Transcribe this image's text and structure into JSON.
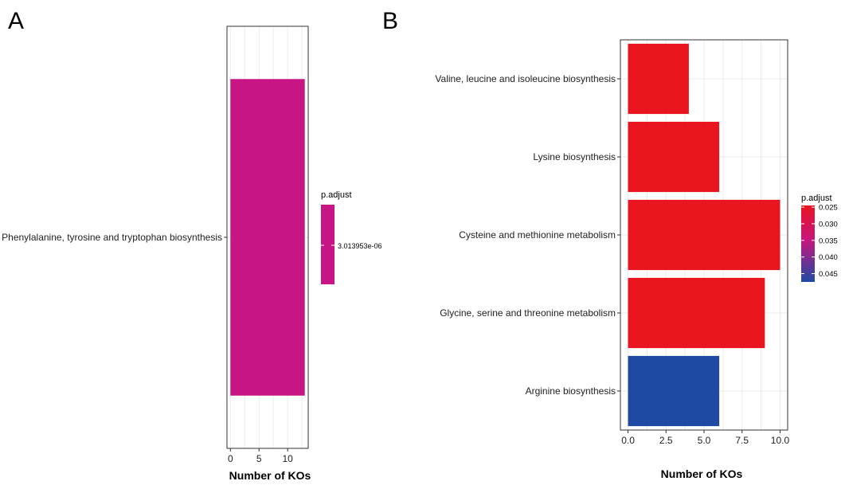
{
  "chart_data": [
    {
      "type": "bar",
      "panel": "A",
      "orientation": "horizontal",
      "categories": [
        "Phenylalanine, tyrosine and tryptophan biosynthesis"
      ],
      "values": [
        13
      ],
      "padjust": [
        3.013953e-06
      ],
      "bar_colors": [
        "#c71585"
      ],
      "xlabel": "Number of KOs",
      "xticks": [
        "0",
        "5",
        "10"
      ],
      "xlim": [
        -0.6,
        13.6
      ],
      "grid": true,
      "legend": {
        "title": "p.adjust",
        "type": "single-color",
        "color": "#c71585",
        "labels": [
          "3.013953e-06"
        ],
        "position": "right"
      }
    },
    {
      "type": "bar",
      "panel": "B",
      "orientation": "horizontal",
      "categories": [
        "Valine, leucine and isoleucine biosynthesis",
        "Lysine biosynthesis",
        "Cysteine and methionine metabolism",
        "Glycine, serine and threonine metabolism",
        "Arginine biosynthesis"
      ],
      "values": [
        4,
        6,
        10,
        9,
        6
      ],
      "padjust": [
        0.025,
        0.025,
        0.025,
        0.025,
        0.047
      ],
      "bar_colors": [
        "#e8141e",
        "#e8141e",
        "#e8141e",
        "#e8141e",
        "#1f4aa3"
      ],
      "xlabel": "Number of KOs",
      "xticks": [
        "0.0",
        "2.5",
        "5.0",
        "7.5",
        "10.0"
      ],
      "xlim": [
        -0.5,
        10.5
      ],
      "grid": true,
      "legend": {
        "title": "p.adjust",
        "type": "gradient",
        "colors": [
          "#e8141e",
          "#c7157e",
          "#1f4aa3"
        ],
        "ticks": [
          "0.025",
          "0.030",
          "0.035",
          "0.040",
          "0.045"
        ],
        "tick_values": [
          0.025,
          0.03,
          0.035,
          0.04,
          0.045
        ],
        "range": [
          0.0245,
          0.0475
        ],
        "position": "right"
      }
    }
  ],
  "panel_labels": [
    "A",
    "B"
  ]
}
